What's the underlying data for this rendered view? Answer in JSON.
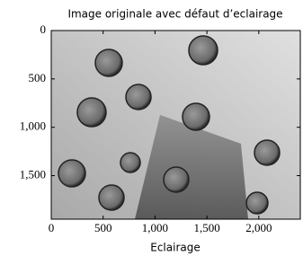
{
  "chart_data": {
    "type": "image",
    "title": "Image originale avec défaut d’eclairage",
    "x_label": "Eclairage",
    "xlim": [
      0,
      2400
    ],
    "ylim": [
      1950,
      0
    ],
    "xticks": [
      0,
      500,
      {
        "value": 1000,
        "label": "1,000"
      },
      {
        "value": 1500,
        "label": "1,500"
      },
      {
        "value": 2000,
        "label": "2,000"
      }
    ],
    "yticks": [
      0,
      500,
      {
        "value": 1000,
        "label": "1,000"
      },
      {
        "value": 1500,
        "label": "1,500"
      }
    ]
  }
}
